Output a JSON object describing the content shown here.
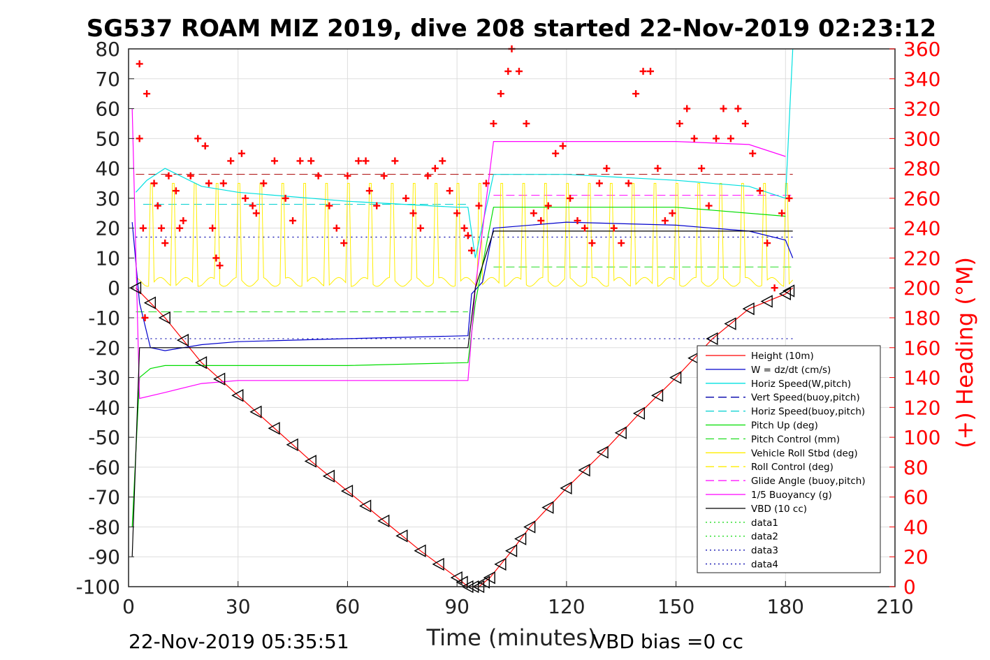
{
  "chart_data": {
    "type": "line",
    "title": "SG537 ROAM MIZ 2019, dive 208 started 22-Nov-2019 02:23:12",
    "xlabel": "Time (minutes)",
    "ylabel": "",
    "y2label": "(+) Heading (°M)",
    "footer_left": "22-Nov-2019 05:35:51",
    "footer_right": "VBD bias =0 cc",
    "xlim": [
      0,
      210
    ],
    "ylim": [
      -100,
      80
    ],
    "y2lim": [
      0,
      360
    ],
    "xticks": [
      0,
      30,
      60,
      90,
      120,
      150,
      180,
      210
    ],
    "yticks": [
      80,
      70,
      60,
      50,
      40,
      30,
      20,
      10,
      0,
      -10,
      -20,
      -30,
      -40,
      -50,
      -60,
      -70,
      -80,
      -90,
      -100
    ],
    "y2ticks": [
      360,
      340,
      320,
      300,
      280,
      260,
      240,
      220,
      200,
      180,
      160,
      140,
      120,
      100,
      80,
      60,
      40,
      20,
      0
    ],
    "grid": true,
    "legend_position": "bottom-right",
    "colors": {
      "height": "#ff0000",
      "w": "#0000cc",
      "horiz": "#00e0e0",
      "pitch": "#00dd00",
      "roll": "#ffff00",
      "buoy": "#ff00ff",
      "vbd": "#000000",
      "heading": "#ff0000"
    },
    "legend": [
      "Height (10m)",
      "W = dz/dt (cm/s)",
      "Horiz Speed(W,pitch)",
      "Vert Speed(buoy,pitch)",
      "Horiz Speed(buoy,pitch)",
      "Pitch Up (deg)",
      "Pitch Control (mm)",
      "Vehicle Roll Stbd (deg)",
      "Roll Control (deg)",
      "Glide Angle (buoy,pitch)",
      "1/5 Buoyancy (g)",
      "VBD (10 cc)",
      "data1",
      "data2",
      "data3",
      "data4"
    ],
    "series": [
      {
        "name": "Height (10m)",
        "x": [
          2,
          10,
          20,
          30,
          40,
          50,
          60,
          70,
          80,
          90,
          93,
          96,
          99,
          105,
          110,
          120,
          130,
          140,
          150,
          160,
          170,
          180,
          182
        ],
        "values": [
          0,
          -10,
          -25,
          -36,
          -47,
          -58,
          -68,
          -78,
          -88,
          -97,
          -100,
          -100,
          -97,
          -88,
          -80,
          -67,
          -55,
          -42,
          -30,
          -17,
          -7,
          -2,
          0
        ]
      },
      {
        "name": "W = dz/dt (cm/s)",
        "x": [
          1,
          3,
          6,
          10,
          20,
          30,
          60,
          93,
          94,
          97,
          100,
          120,
          150,
          170,
          180,
          182
        ],
        "values": [
          22,
          -5,
          -20,
          -21,
          -19,
          -18,
          -17,
          -16,
          -2,
          2,
          20,
          22,
          21,
          19,
          16,
          10
        ]
      },
      {
        "name": "Horiz Speed(W,pitch)",
        "x": [
          2,
          5,
          10,
          20,
          30,
          60,
          90,
          93,
          95,
          100,
          120,
          150,
          170,
          180,
          182
        ],
        "values": [
          32,
          36,
          40,
          34,
          32,
          29,
          27,
          27,
          10,
          38,
          38,
          36,
          34,
          30,
          80
        ]
      },
      {
        "name": "Pitch Up (deg)",
        "x": [
          1,
          3,
          6,
          10,
          20,
          60,
          93,
          95,
          100,
          150,
          180
        ],
        "values": [
          -80,
          -30,
          -27,
          -26,
          -26,
          -26,
          -25,
          -5,
          27,
          27,
          24
        ]
      },
      {
        "name": "1/5 Buoyancy (g)",
        "x": [
          1,
          3,
          10,
          20,
          30,
          60,
          93,
          95,
          100,
          150,
          170,
          180
        ],
        "values": [
          60,
          -37,
          -35,
          -32,
          -31,
          -31,
          -31,
          0,
          49,
          49,
          48,
          44
        ]
      },
      {
        "name": "VBD (10 cc)",
        "x": [
          1,
          3,
          4,
          93,
          95,
          100,
          182
        ],
        "values": [
          -90,
          -20,
          -20,
          -20,
          0,
          19,
          19
        ]
      }
    ],
    "heading_points": [
      [
        3,
        350
      ],
      [
        3,
        300
      ],
      [
        4,
        240
      ],
      [
        4.5,
        180
      ],
      [
        5,
        330
      ],
      [
        7,
        270
      ],
      [
        8,
        255
      ],
      [
        9,
        240
      ],
      [
        10,
        230
      ],
      [
        11,
        275
      ],
      [
        13,
        265
      ],
      [
        14,
        240
      ],
      [
        15,
        245
      ],
      [
        17,
        275
      ],
      [
        19,
        300
      ],
      [
        21,
        295
      ],
      [
        22,
        270
      ],
      [
        23,
        240
      ],
      [
        24,
        220
      ],
      [
        25,
        215
      ],
      [
        26,
        270
      ],
      [
        28,
        285
      ],
      [
        31,
        290
      ],
      [
        32,
        260
      ],
      [
        34,
        255
      ],
      [
        35,
        250
      ],
      [
        37,
        270
      ],
      [
        40,
        285
      ],
      [
        43,
        260
      ],
      [
        45,
        245
      ],
      [
        47,
        285
      ],
      [
        50,
        285
      ],
      [
        52,
        275
      ],
      [
        55,
        255
      ],
      [
        57,
        240
      ],
      [
        59,
        230
      ],
      [
        60,
        275
      ],
      [
        63,
        285
      ],
      [
        65,
        285
      ],
      [
        66,
        265
      ],
      [
        68,
        255
      ],
      [
        70,
        275
      ],
      [
        73,
        285
      ],
      [
        76,
        260
      ],
      [
        78,
        250
      ],
      [
        80,
        240
      ],
      [
        82,
        275
      ],
      [
        84,
        280
      ],
      [
        86,
        285
      ],
      [
        88,
        265
      ],
      [
        90,
        250
      ],
      [
        92,
        240
      ],
      [
        93,
        235
      ],
      [
        94,
        225
      ],
      [
        96,
        255
      ],
      [
        98,
        270
      ],
      [
        100,
        310
      ],
      [
        102,
        330
      ],
      [
        104,
        345
      ],
      [
        105,
        360
      ],
      [
        107,
        345
      ],
      [
        109,
        310
      ],
      [
        111,
        250
      ],
      [
        113,
        245
      ],
      [
        115,
        255
      ],
      [
        117,
        290
      ],
      [
        119,
        295
      ],
      [
        121,
        260
      ],
      [
        123,
        245
      ],
      [
        125,
        240
      ],
      [
        127,
        230
      ],
      [
        129,
        270
      ],
      [
        131,
        280
      ],
      [
        133,
        240
      ],
      [
        135,
        230
      ],
      [
        137,
        270
      ],
      [
        139,
        330
      ],
      [
        141,
        345
      ],
      [
        143,
        345
      ],
      [
        145,
        280
      ],
      [
        147,
        245
      ],
      [
        149,
        250
      ],
      [
        151,
        310
      ],
      [
        153,
        320
      ],
      [
        155,
        300
      ],
      [
        157,
        280
      ],
      [
        159,
        255
      ],
      [
        161,
        300
      ],
      [
        163,
        320
      ],
      [
        165,
        300
      ],
      [
        167,
        320
      ],
      [
        169,
        310
      ],
      [
        171,
        290
      ],
      [
        173,
        265
      ],
      [
        175,
        230
      ],
      [
        177,
        200
      ],
      [
        179,
        250
      ],
      [
        181,
        260
      ]
    ]
  }
}
